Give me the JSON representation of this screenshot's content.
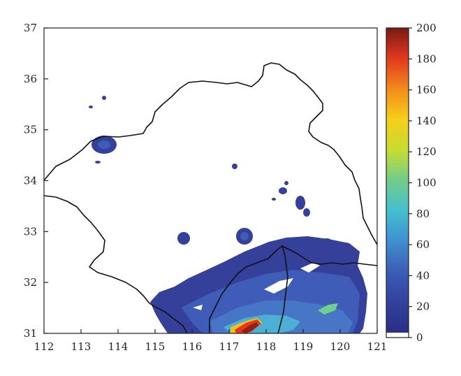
{
  "map": {
    "x_ticks": [
      "112",
      "113",
      "114",
      "115",
      "116",
      "117",
      "118",
      "119",
      "120",
      "121"
    ],
    "y_ticks": [
      "31",
      "32",
      "33",
      "34",
      "35",
      "36",
      "37"
    ],
    "colorbar_ticks": [
      "0",
      "20",
      "40",
      "60",
      "80",
      "100",
      "120",
      "140",
      "160",
      "180",
      "200"
    ],
    "colorbar_colors": [
      "#ffffff",
      "#2b2f86",
      "#3a4aa6",
      "#3f73c2",
      "#3eabd8",
      "#4fc7a8",
      "#9bd04a",
      "#f2e31a",
      "#f5a31a",
      "#ee4a1e",
      "#c92b1c",
      "#7a1a12"
    ],
    "lon_range": [
      112,
      121
    ],
    "lat_range": [
      31,
      37
    ],
    "value_range": [
      0,
      200
    ]
  }
}
